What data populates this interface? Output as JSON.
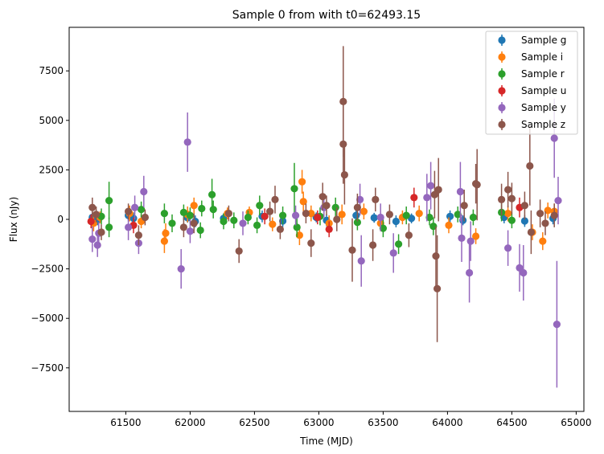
{
  "chart_data": {
    "type": "scatter",
    "title": "Sample 0 from with t0=62493.15",
    "xlabel": "Time (MJD)",
    "ylabel": "Flux (nJy)",
    "xlim": [
      61060,
      65060
    ],
    "ylim": [
      -9700,
      9700
    ],
    "xticks": [
      61500,
      62000,
      62500,
      63000,
      63500,
      64000,
      64500,
      65000
    ],
    "yticks": [
      -7500,
      -5000,
      -2500,
      0,
      2500,
      5000,
      7500
    ],
    "legend_position": "upper right",
    "grid": false,
    "error_bars": true,
    "series": [
      {
        "name": "Sample g",
        "color": "#1f77b4",
        "points": [
          [
            61240,
            100,
            300
          ],
          [
            61280,
            -50,
            250
          ],
          [
            61520,
            200,
            300
          ],
          [
            61560,
            50,
            300
          ],
          [
            61980,
            80,
            250
          ],
          [
            62040,
            -100,
            300
          ],
          [
            62260,
            50,
            250
          ],
          [
            62560,
            150,
            300
          ],
          [
            62720,
            -80,
            300
          ],
          [
            62980,
            100,
            250
          ],
          [
            63060,
            -50,
            300
          ],
          [
            63290,
            200,
            300
          ],
          [
            63430,
            80,
            250
          ],
          [
            63600,
            -100,
            300
          ],
          [
            63720,
            50,
            250
          ],
          [
            64020,
            150,
            300
          ],
          [
            64120,
            -50,
            250
          ],
          [
            64440,
            100,
            300
          ],
          [
            64600,
            -80,
            300
          ],
          [
            64820,
            50,
            300
          ]
        ]
      },
      {
        "name": "Sample i",
        "color": "#ff7f0e",
        "points": [
          [
            61250,
            -200,
            400
          ],
          [
            61300,
            100,
            300
          ],
          [
            61530,
            300,
            400
          ],
          [
            61620,
            -100,
            350
          ],
          [
            61800,
            -1100,
            600
          ],
          [
            61810,
            -700,
            500
          ],
          [
            61980,
            250,
            400
          ],
          [
            62030,
            700,
            400
          ],
          [
            62290,
            300,
            300
          ],
          [
            62460,
            350,
            300
          ],
          [
            62640,
            -250,
            350
          ],
          [
            62850,
            -800,
            500
          ],
          [
            62870,
            1900,
            600
          ],
          [
            62880,
            900,
            500
          ],
          [
            62940,
            300,
            400
          ],
          [
            63080,
            -200,
            400
          ],
          [
            63180,
            250,
            500
          ],
          [
            63350,
            400,
            400
          ],
          [
            63480,
            -200,
            400
          ],
          [
            63650,
            100,
            350
          ],
          [
            63780,
            300,
            400
          ],
          [
            64010,
            -300,
            400
          ],
          [
            64220,
            -850,
            400
          ],
          [
            64470,
            300,
            400
          ],
          [
            64660,
            -650,
            400
          ],
          [
            64740,
            -1100,
            450
          ],
          [
            64780,
            450,
            400
          ],
          [
            64830,
            400,
            400
          ]
        ]
      },
      {
        "name": "Sample r",
        "color": "#2ca02c",
        "points": [
          [
            61310,
            150,
            400
          ],
          [
            61370,
            950,
            950
          ],
          [
            61370,
            -400,
            500
          ],
          [
            61620,
            500,
            400
          ],
          [
            61800,
            300,
            500
          ],
          [
            61860,
            -200,
            450
          ],
          [
            61950,
            350,
            400
          ],
          [
            62000,
            200,
            400
          ],
          [
            62080,
            -550,
            400
          ],
          [
            62090,
            550,
            400
          ],
          [
            62170,
            1250,
            800
          ],
          [
            62180,
            500,
            450
          ],
          [
            62260,
            -100,
            400
          ],
          [
            62340,
            -50,
            400
          ],
          [
            62450,
            100,
            350
          ],
          [
            62520,
            -300,
            400
          ],
          [
            62540,
            700,
            500
          ],
          [
            62720,
            200,
            450
          ],
          [
            62810,
            1550,
            1300
          ],
          [
            62830,
            -400,
            500
          ],
          [
            63010,
            150,
            450
          ],
          [
            63130,
            600,
            500
          ],
          [
            63300,
            -150,
            400
          ],
          [
            63500,
            -450,
            450
          ],
          [
            63620,
            -1250,
            500
          ],
          [
            63680,
            200,
            450
          ],
          [
            63860,
            100,
            400
          ],
          [
            63890,
            -350,
            450
          ],
          [
            64080,
            250,
            400
          ],
          [
            64200,
            100,
            400
          ],
          [
            64420,
            350,
            450
          ],
          [
            64500,
            -50,
            400
          ]
        ]
      },
      {
        "name": "Sample u",
        "color": "#d62728",
        "points": [
          [
            61230,
            -100,
            350
          ],
          [
            61560,
            -300,
            400
          ],
          [
            62580,
            150,
            400
          ],
          [
            62990,
            100,
            350
          ],
          [
            63080,
            -500,
            400
          ],
          [
            63740,
            1100,
            500
          ],
          [
            64560,
            600,
            500
          ]
        ]
      },
      {
        "name": "Sample y",
        "color": "#9467bd",
        "points": [
          [
            61240,
            -1000,
            650
          ],
          [
            61280,
            -1300,
            600
          ],
          [
            61290,
            -700,
            550
          ],
          [
            61520,
            -400,
            650
          ],
          [
            61570,
            600,
            600
          ],
          [
            61600,
            -1200,
            550
          ],
          [
            61640,
            1400,
            800
          ],
          [
            61930,
            -2500,
            1000
          ],
          [
            61980,
            3900,
            1500
          ],
          [
            62000,
            -600,
            600
          ],
          [
            62410,
            -200,
            600
          ],
          [
            62820,
            200,
            500
          ],
          [
            63040,
            600,
            500
          ],
          [
            63320,
            1000,
            800
          ],
          [
            63330,
            -2100,
            1300
          ],
          [
            63480,
            100,
            700
          ],
          [
            63580,
            -1700,
            1000
          ],
          [
            63840,
            1100,
            1200
          ],
          [
            63870,
            1700,
            1200
          ],
          [
            64100,
            1400,
            1500
          ],
          [
            64110,
            -950,
            1200
          ],
          [
            64170,
            -2700,
            1500
          ],
          [
            64180,
            -1100,
            1000
          ],
          [
            64470,
            -1450,
            900
          ],
          [
            64560,
            -2450,
            1200
          ],
          [
            64590,
            -2700,
            1400
          ],
          [
            64830,
            4100,
            2000
          ],
          [
            64850,
            -5300,
            3200
          ],
          [
            64860,
            950,
            1200
          ]
        ]
      },
      {
        "name": "Sample z",
        "color": "#8c564b",
        "points": [
          [
            61240,
            600,
            500
          ],
          [
            61270,
            250,
            400
          ],
          [
            61310,
            -650,
            400
          ],
          [
            61520,
            400,
            400
          ],
          [
            61600,
            -800,
            500
          ],
          [
            61650,
            100,
            400
          ],
          [
            61950,
            -400,
            500
          ],
          [
            62030,
            -200,
            500
          ],
          [
            62300,
            300,
            400
          ],
          [
            62380,
            -1600,
            600
          ],
          [
            62620,
            400,
            500
          ],
          [
            62660,
            1000,
            700
          ],
          [
            62700,
            -500,
            500
          ],
          [
            62900,
            300,
            500
          ],
          [
            62940,
            -1200,
            700
          ],
          [
            63030,
            1150,
            700
          ],
          [
            63060,
            700,
            500
          ],
          [
            63140,
            0,
            600
          ],
          [
            63190,
            5950,
            2800
          ],
          [
            63190,
            3800,
            2000
          ],
          [
            63200,
            2250,
            1500
          ],
          [
            63260,
            -1550,
            1600
          ],
          [
            63300,
            600,
            700
          ],
          [
            63420,
            -1300,
            800
          ],
          [
            63440,
            1000,
            600
          ],
          [
            63550,
            250,
            500
          ],
          [
            63700,
            -800,
            600
          ],
          [
            63900,
            1250,
            1200
          ],
          [
            63910,
            -1850,
            1500
          ],
          [
            63920,
            -3500,
            2700
          ],
          [
            63930,
            1500,
            1600
          ],
          [
            64130,
            700,
            800
          ],
          [
            64220,
            1800,
            1000
          ],
          [
            64230,
            1750,
            1800
          ],
          [
            64420,
            1000,
            800
          ],
          [
            64470,
            1500,
            900
          ],
          [
            64500,
            1050,
            800
          ],
          [
            64600,
            700,
            700
          ],
          [
            64640,
            2700,
            2000
          ],
          [
            64650,
            -650,
            1100
          ],
          [
            64720,
            300,
            700
          ],
          [
            64760,
            -200,
            600
          ],
          [
            64830,
            200,
            600
          ]
        ]
      }
    ]
  }
}
